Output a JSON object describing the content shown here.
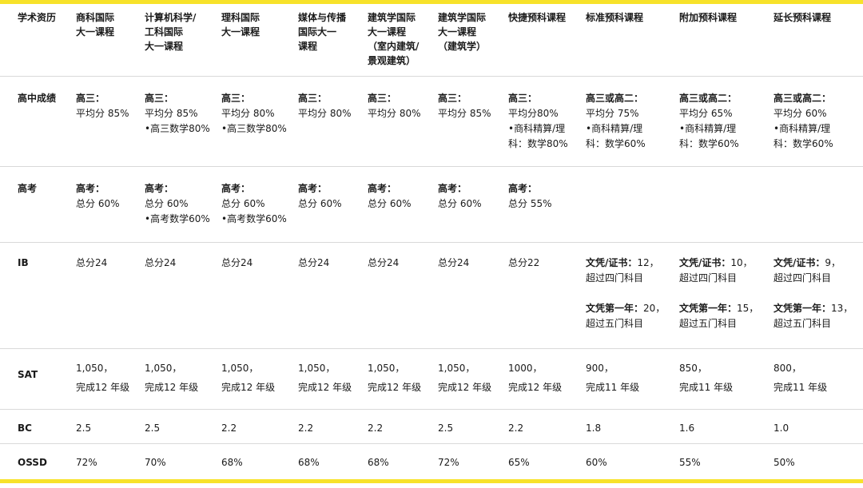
{
  "colors": {
    "accent_yellow": "#f7e22a",
    "divider": "#d9d9d9",
    "text": "#1a1a1a"
  },
  "table": {
    "corner": "学术资历",
    "columns": [
      [
        "商科国际",
        "大一课程"
      ],
      [
        "计算机科学/",
        "工科国际",
        "大一课程"
      ],
      [
        "理科国际",
        "大一课程"
      ],
      [
        "媒体与传播",
        "国际大一",
        "课程"
      ],
      [
        "建筑学国际",
        "大一课程",
        "（室内建筑/",
        "景观建筑）"
      ],
      [
        "建筑学国际",
        "大一课程",
        "（建筑学）"
      ],
      [
        "快捷预科课程"
      ],
      [
        "标准预科课程"
      ],
      [
        "附加预科课程"
      ],
      [
        "延长预科课程"
      ]
    ],
    "rows": {
      "gpa": {
        "label": "高中成绩",
        "cells": [
          [
            "高三：",
            "平均分 85%"
          ],
          [
            "高三：",
            "平均分 85%",
            "•高三数学80%"
          ],
          [
            "高三：",
            "平均分 80%",
            "•高三数学80%"
          ],
          [
            "高三：",
            "平均分 80%"
          ],
          [
            "高三：",
            "平均分 80%"
          ],
          [
            "高三：",
            "平均分 85%"
          ],
          [
            "高三：",
            "平均分80%",
            "•商科精算/理",
            "科：数学80%"
          ],
          [
            "高三或高二：",
            "平均分 75%",
            "•商科精算/理",
            "科：数学60%"
          ],
          [
            "高三或高二：",
            "平均分 65%",
            "•商科精算/理",
            "科：数学60%"
          ],
          [
            "高三或高二：",
            "平均分 60%",
            "•商科精算/理",
            "科：数学60%"
          ]
        ]
      },
      "gaokao": {
        "label": "高考",
        "cells": [
          [
            "高考：",
            "总分 60%"
          ],
          [
            "高考：",
            "总分 60%",
            "•高考数学60%"
          ],
          [
            "高考：",
            "总分 60%",
            "•高考数学60%"
          ],
          [
            "高考：",
            "总分 60%"
          ],
          [
            "高考：",
            "总分 60%"
          ],
          [
            "高考：",
            "总分 60%"
          ],
          [
            "高考：",
            "总分 55%"
          ],
          [],
          [],
          []
        ]
      },
      "ib": {
        "label": "IB",
        "cells": [
          {
            "simple": "总分24"
          },
          {
            "simple": "总分24"
          },
          {
            "simple": "总分24"
          },
          {
            "simple": "总分24"
          },
          {
            "simple": "总分24"
          },
          {
            "simple": "总分24"
          },
          {
            "simple": "总分22"
          },
          {
            "cert_label": "文凭/证书：",
            "cert_value": "12，",
            "cert_detail": "超过四门科目",
            "y1_label": "文凭第一年：",
            "y1_value": "20，",
            "y1_detail": "超过五门科目"
          },
          {
            "cert_label": "文凭/证书：",
            "cert_value": "10，",
            "cert_detail": "超过四门科目",
            "y1_label": "文凭第一年：",
            "y1_value": "15，",
            "y1_detail": "超过五门科目"
          },
          {
            "cert_label": "文凭/证书：",
            "cert_value": "9，",
            "cert_detail": "超过四门科目",
            "y1_label": "文凭第一年：",
            "y1_value": "13，",
            "y1_detail": "超过五门科目"
          }
        ]
      },
      "sat": {
        "label": "SAT",
        "cells": [
          [
            "1,050，",
            "完成12 年级"
          ],
          [
            "1,050，",
            "完成12 年级"
          ],
          [
            "1,050，",
            "完成12 年级"
          ],
          [
            "1,050，",
            "完成12 年级"
          ],
          [
            "1,050，",
            "完成12 年级"
          ],
          [
            "1,050，",
            "完成12 年级"
          ],
          [
            "1000，",
            "完成12 年级"
          ],
          [
            "900，",
            "完成11 年级"
          ],
          [
            "850，",
            "完成11 年级"
          ],
          [
            "800，",
            "完成11 年级"
          ]
        ]
      },
      "bc": {
        "label": "BC",
        "cells": [
          "2.5",
          "2.5",
          "2.2",
          "2.2",
          "2.2",
          "2.5",
          "2.2",
          "1.8",
          "1.6",
          "1.0"
        ]
      },
      "ossd": {
        "label": "OSSD",
        "cells": [
          "72%",
          "70%",
          "68%",
          "68%",
          "68%",
          "72%",
          "65%",
          "60%",
          "55%",
          "50%"
        ]
      }
    }
  }
}
